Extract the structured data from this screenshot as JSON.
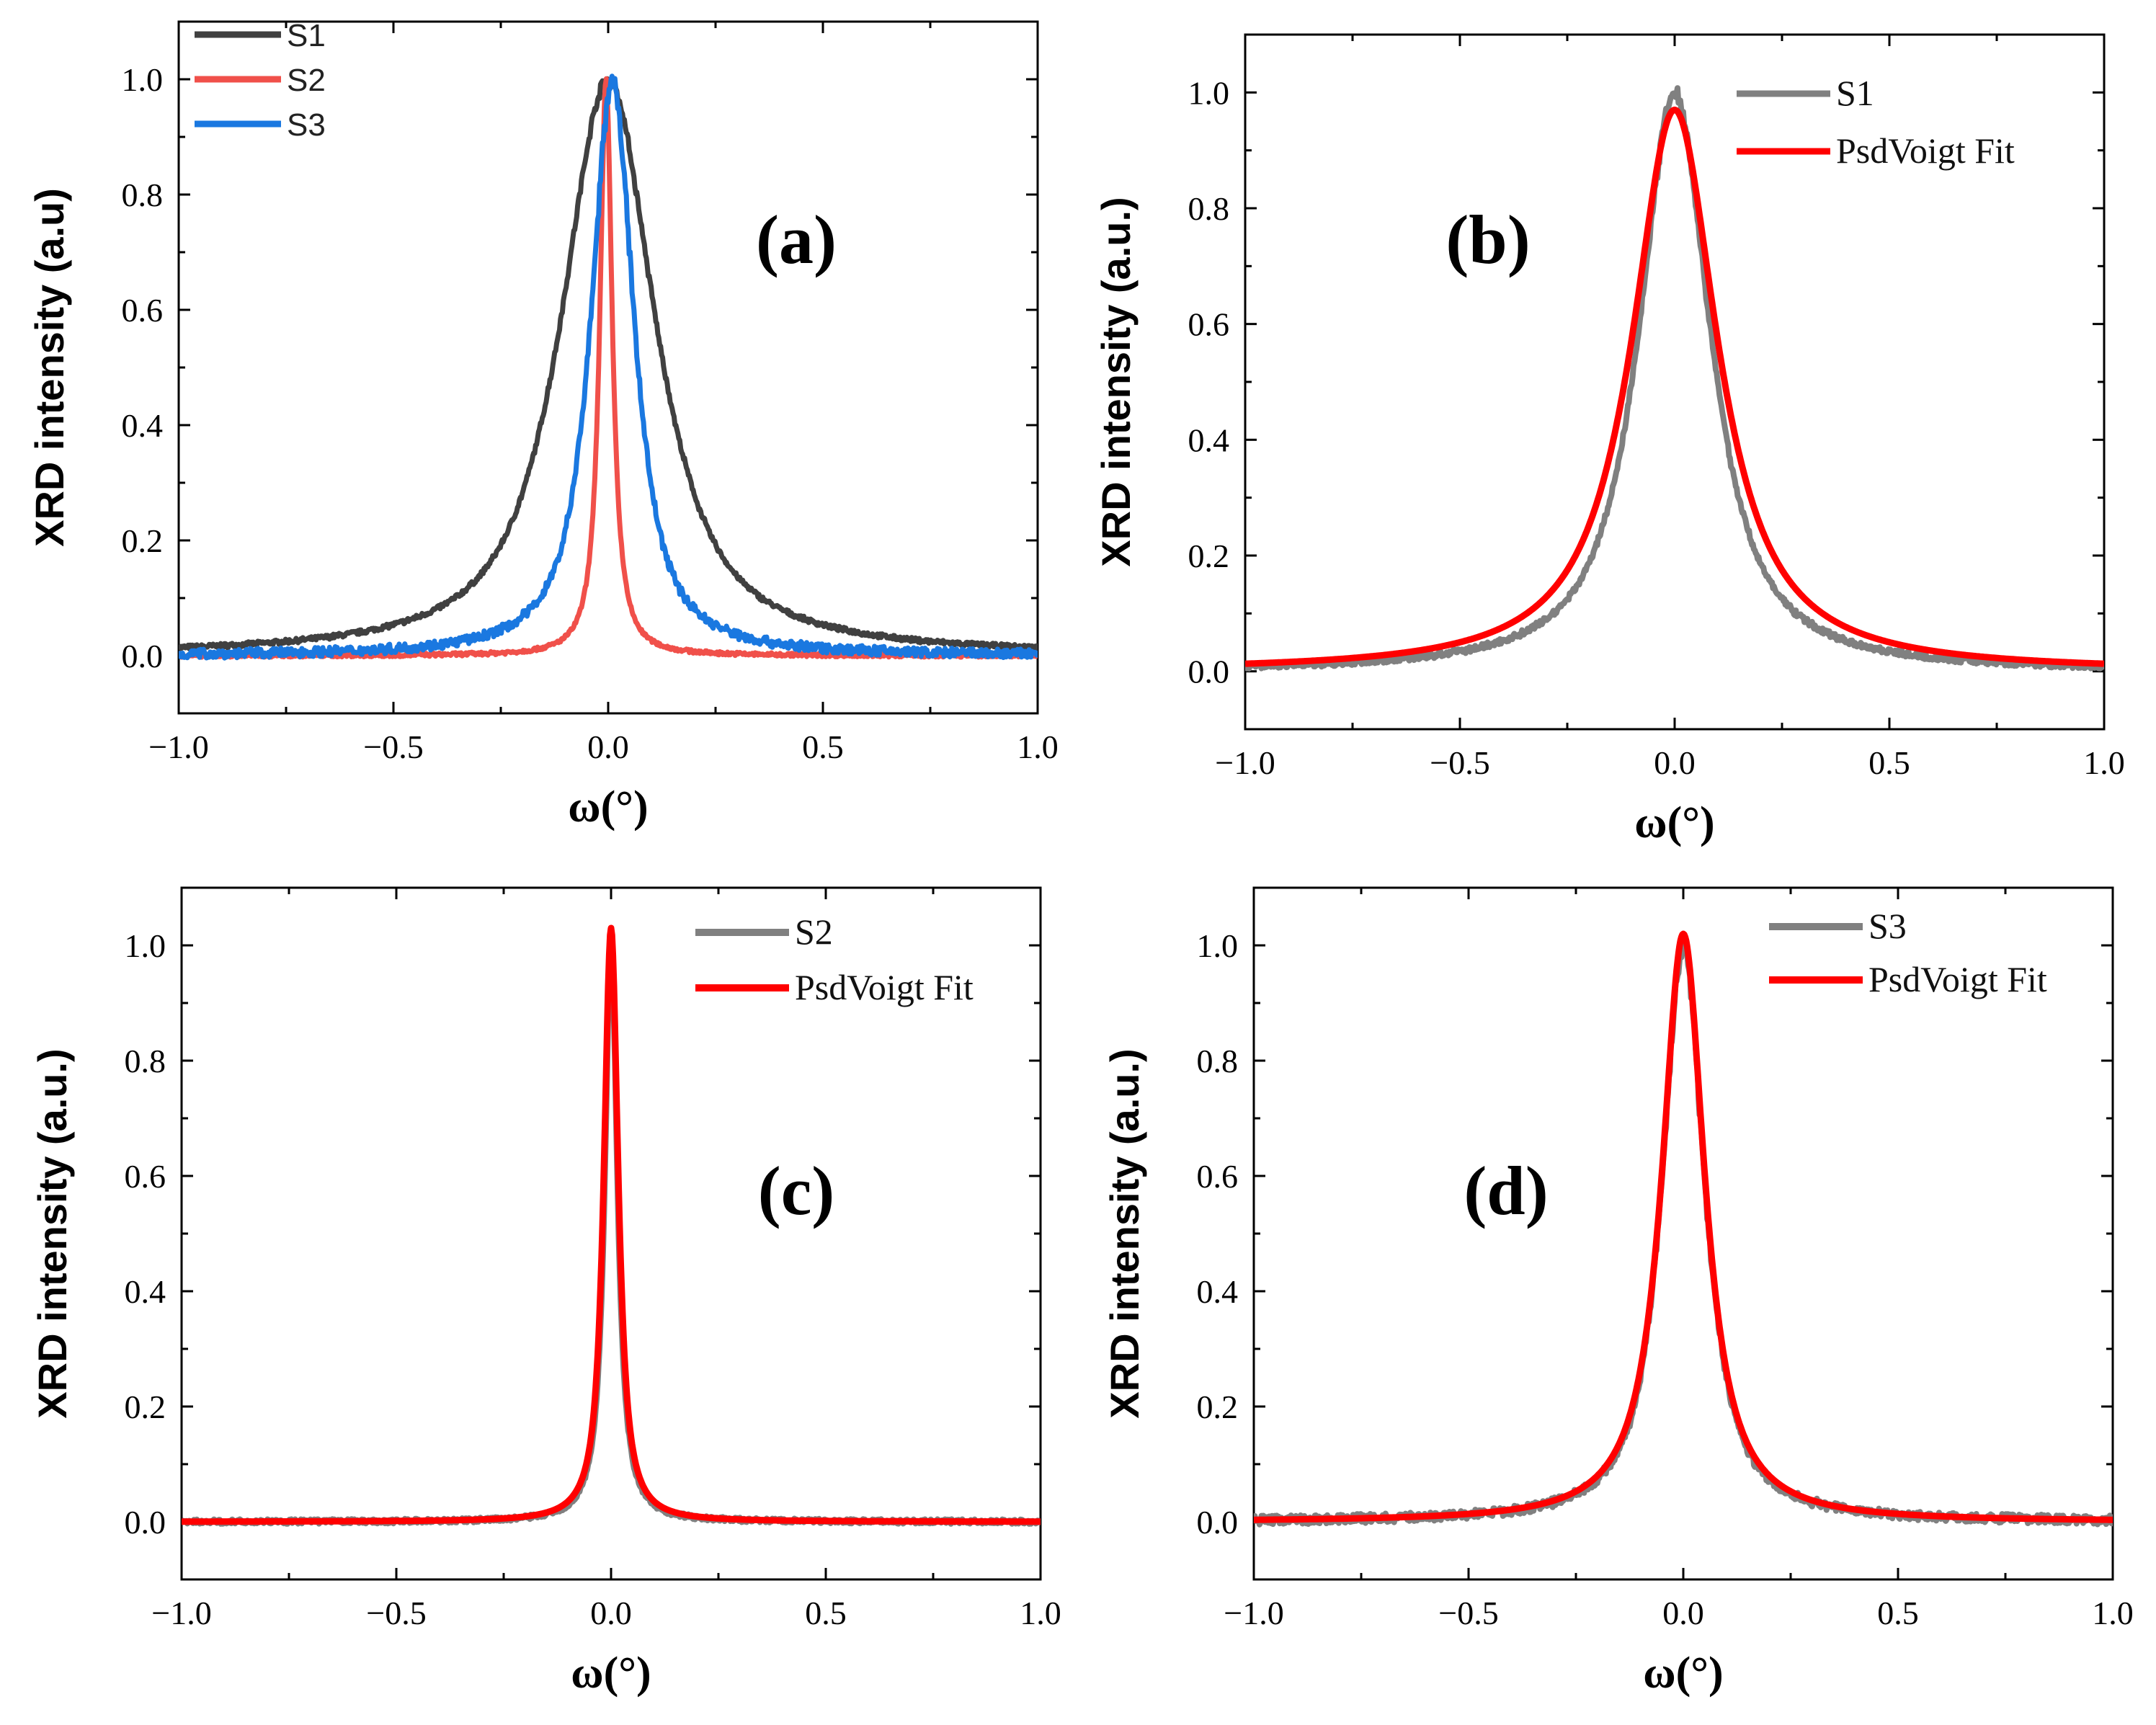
{
  "chart_data": [
    {
      "id": "a",
      "type": "line",
      "panel_label": "(a)",
      "xlabel": "ω(°)",
      "ylabel": "XRD intensity (a.u)",
      "xlim": [
        -1.0,
        1.0
      ],
      "ylim": [
        -0.1,
        1.1
      ],
      "xticks": [
        "−1.0",
        "−0.5",
        "0.0",
        "0.5",
        "1.0"
      ],
      "yticks": [
        "0.0",
        "0.2",
        "0.4",
        "0.6",
        "0.8",
        "1.0"
      ],
      "legend_position": "top-left",
      "series": [
        {
          "name": "S1",
          "color": "#404040",
          "center": 0.0,
          "fwhm": 0.26,
          "eta": 0.85,
          "amplitude": 1.0,
          "noise": 0.004
        },
        {
          "name": "S2",
          "color": "#f0504a",
          "center": -0.005,
          "fwhm": 0.035,
          "eta": 1.0,
          "amplitude": 1.0,
          "noise": 0.003
        },
        {
          "name": "S3",
          "color": "#1a78e0",
          "center": 0.01,
          "fwhm": 0.12,
          "eta": 0.9,
          "amplitude": 1.0,
          "noise": 0.008
        }
      ]
    },
    {
      "id": "b",
      "type": "line",
      "panel_label": "(b)",
      "xlabel": "ω(°)",
      "ylabel": "XRD intensity (a.u.)",
      "xlim": [
        -1.0,
        1.0
      ],
      "ylim": [
        -0.1,
        1.1
      ],
      "xticks": [
        "−1.0",
        "−0.5",
        "0.0",
        "0.5",
        "1.0"
      ],
      "yticks": [
        "0.0",
        "0.2",
        "0.4",
        "0.6",
        "0.8",
        "1.0"
      ],
      "legend_position": "top-right",
      "series": [
        {
          "name": "S1",
          "color": "#808080",
          "center": 0.0,
          "fwhm": 0.2,
          "eta": 0.9,
          "amplitude": 1.0,
          "noise": 0.005
        },
        {
          "name": "PsdVoigt Fit",
          "color": "#ff0000",
          "center": 0.0,
          "fwhm": 0.24,
          "eta": 0.95,
          "amplitude": 0.97,
          "noise": 0
        }
      ]
    },
    {
      "id": "c",
      "type": "line",
      "panel_label": "(c)",
      "xlabel": "ω(°)",
      "ylabel": "XRD intensity (a.u.)",
      "xlim": [
        -1.0,
        1.0
      ],
      "ylim": [
        -0.1,
        1.1
      ],
      "xticks": [
        "−1.0",
        "−0.5",
        "0.0",
        "0.5",
        "1.0"
      ],
      "yticks": [
        "0.0",
        "0.2",
        "0.4",
        "0.6",
        "0.8",
        "1.0"
      ],
      "legend_position": "top-right",
      "series": [
        {
          "name": "S2",
          "color": "#808080",
          "center": 0.0,
          "fwhm": 0.035,
          "eta": 1.0,
          "amplitude": 1.0,
          "noise": 0.004
        },
        {
          "name": "PsdVoigt Fit",
          "color": "#ff0000",
          "center": 0.0,
          "fwhm": 0.04,
          "eta": 0.9,
          "amplitude": 1.03,
          "noise": 0
        }
      ]
    },
    {
      "id": "d",
      "type": "line",
      "panel_label": "(d)",
      "xlabel": "ω(°)",
      "ylabel": "XRD intensity (a.u.)",
      "xlim": [
        -1.0,
        1.0
      ],
      "ylim": [
        -0.1,
        1.1
      ],
      "xticks": [
        "−1.0",
        "−0.5",
        "0.0",
        "0.5",
        "1.0"
      ],
      "yticks": [
        "0.0",
        "0.2",
        "0.4",
        "0.6",
        "0.8",
        "1.0"
      ],
      "legend_position": "top-right",
      "series": [
        {
          "name": "S3",
          "color": "#808080",
          "center": 0.0,
          "fwhm": 0.12,
          "eta": 0.9,
          "amplitude": 1.0,
          "noise": 0.008
        },
        {
          "name": "PsdVoigt Fit",
          "color": "#ff0000",
          "center": 0.0,
          "fwhm": 0.12,
          "eta": 0.95,
          "amplitude": 1.02,
          "noise": 0
        }
      ]
    }
  ]
}
